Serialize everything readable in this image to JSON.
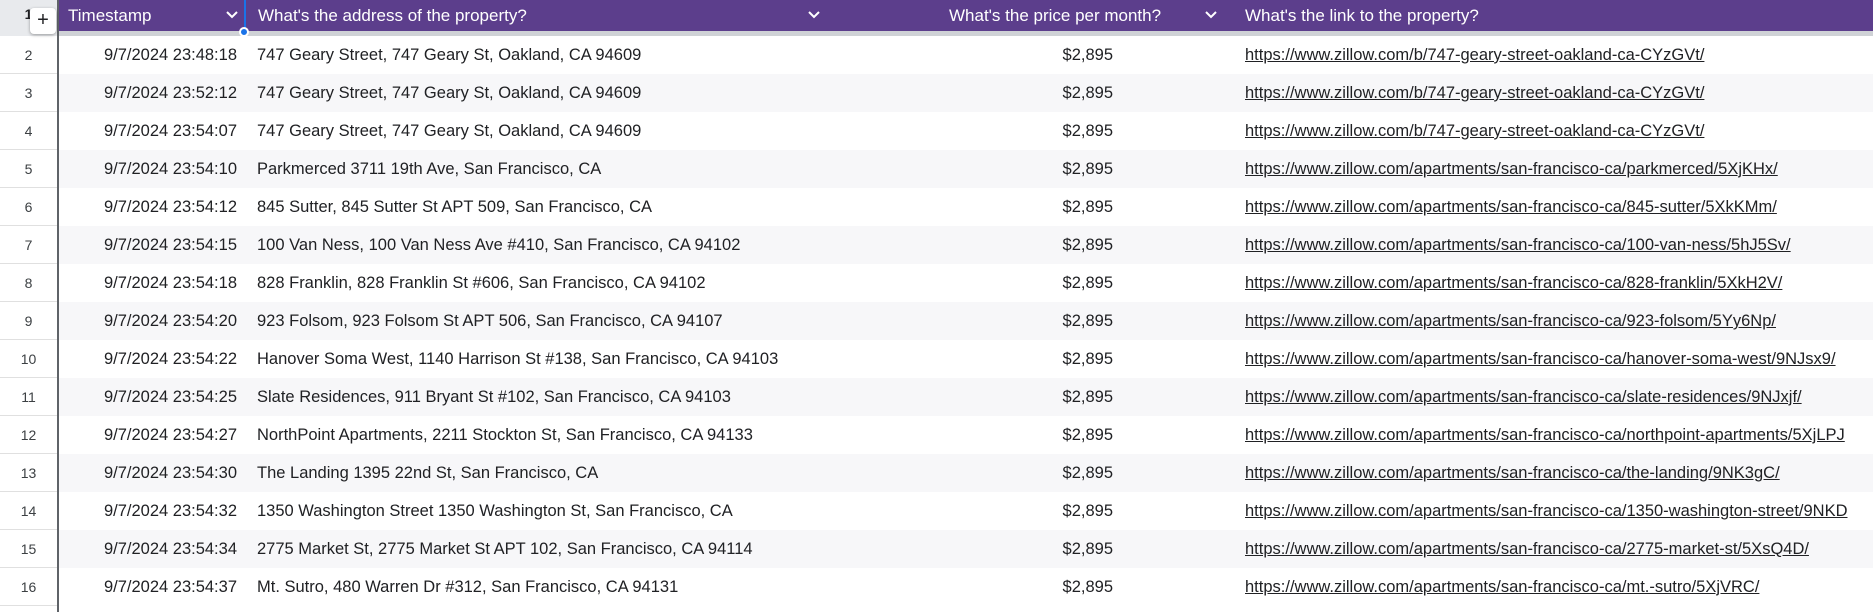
{
  "header_row_number": "1",
  "add_button_label": "+",
  "columns": [
    {
      "label": "Timestamp"
    },
    {
      "label": "What's the address of the property?"
    },
    {
      "label": "What's the price per month?"
    },
    {
      "label": "What's the link to the property?"
    }
  ],
  "rows": [
    {
      "num": "2",
      "timestamp": "9/7/2024 23:48:18",
      "address": "747 Geary Street, 747 Geary St, Oakland, CA 94609",
      "price": "$2,895",
      "link": "https://www.zillow.com/b/747-geary-street-oakland-ca-CYzGVt/"
    },
    {
      "num": "3",
      "timestamp": "9/7/2024 23:52:12",
      "address": "747 Geary Street, 747 Geary St, Oakland, CA 94609",
      "price": "$2,895",
      "link": "https://www.zillow.com/b/747-geary-street-oakland-ca-CYzGVt/"
    },
    {
      "num": "4",
      "timestamp": "9/7/2024 23:54:07",
      "address": "747 Geary Street, 747 Geary St, Oakland, CA 94609",
      "price": "$2,895",
      "link": "https://www.zillow.com/b/747-geary-street-oakland-ca-CYzGVt/"
    },
    {
      "num": "5",
      "timestamp": "9/7/2024 23:54:10",
      "address": "Parkmerced   3711 19th Ave, San Francisco, CA",
      "price": "$2,895",
      "link": "https://www.zillow.com/apartments/san-francisco-ca/parkmerced/5XjKHx/"
    },
    {
      "num": "6",
      "timestamp": "9/7/2024 23:54:12",
      "address": "845 Sutter, 845 Sutter St APT 509, San Francisco, CA",
      "price": "$2,895",
      "link": "https://www.zillow.com/apartments/san-francisco-ca/845-sutter/5XkKMm/"
    },
    {
      "num": "7",
      "timestamp": "9/7/2024 23:54:15",
      "address": "100 Van Ness, 100 Van Ness Ave #410, San Francisco, CA 94102",
      "price": "$2,895",
      "link": "https://www.zillow.com/apartments/san-francisco-ca/100-van-ness/5hJ5Sv/"
    },
    {
      "num": "8",
      "timestamp": "9/7/2024 23:54:18",
      "address": "828 Franklin, 828 Franklin St #606, San Francisco, CA 94102",
      "price": "$2,895",
      "link": "https://www.zillow.com/apartments/san-francisco-ca/828-franklin/5XkH2V/"
    },
    {
      "num": "9",
      "timestamp": "9/7/2024 23:54:20",
      "address": "923 Folsom, 923 Folsom St APT 506, San Francisco, CA 94107",
      "price": "$2,895",
      "link": "https://www.zillow.com/apartments/san-francisco-ca/923-folsom/5Yy6Np/"
    },
    {
      "num": "10",
      "timestamp": "9/7/2024 23:54:22",
      "address": "Hanover Soma West, 1140 Harrison St #138, San Francisco, CA 94103",
      "price": "$2,895",
      "link": "https://www.zillow.com/apartments/san-francisco-ca/hanover-soma-west/9NJsx9/"
    },
    {
      "num": "11",
      "timestamp": "9/7/2024 23:54:25",
      "address": "Slate Residences, 911 Bryant St #102, San Francisco, CA 94103",
      "price": "$2,895",
      "link": "https://www.zillow.com/apartments/san-francisco-ca/slate-residences/9NJxjf/"
    },
    {
      "num": "12",
      "timestamp": "9/7/2024 23:54:27",
      "address": "NorthPoint Apartments, 2211 Stockton St, San Francisco, CA 94133",
      "price": "$2,895",
      "link": "https://www.zillow.com/apartments/san-francisco-ca/northpoint-apartments/5XjLPJ"
    },
    {
      "num": "13",
      "timestamp": "9/7/2024 23:54:30",
      "address": "The Landing   1395 22nd St, San Francisco, CA",
      "price": "$2,895",
      "link": "https://www.zillow.com/apartments/san-francisco-ca/the-landing/9NK3gC/"
    },
    {
      "num": "14",
      "timestamp": "9/7/2024 23:54:32",
      "address": "1350 Washington Street   1350 Washington St, San Francisco, CA",
      "price": "$2,895",
      "link": "https://www.zillow.com/apartments/san-francisco-ca/1350-washington-street/9NKD"
    },
    {
      "num": "15",
      "timestamp": "9/7/2024 23:54:34",
      "address": "2775 Market St, 2775 Market St APT 102, San Francisco, CA 94114",
      "price": "$2,895",
      "link": "https://www.zillow.com/apartments/san-francisco-ca/2775-market-st/5XsQ4D/"
    },
    {
      "num": "16",
      "timestamp": "9/7/2024 23:54:37",
      "address": "Mt. Sutro, 480 Warren Dr #312, San Francisco, CA 94131",
      "price": "$2,895",
      "link": "https://www.zillow.com/apartments/san-francisco-ca/mt.-sutro/5XjVRC/"
    }
  ],
  "colors": {
    "header_bg": "#5c3e8c",
    "selection": "#1a73e8",
    "row_alt": "#f7f7f9"
  },
  "icons": {
    "column_menu": "chevron-down-icon",
    "add": "plus-icon"
  }
}
